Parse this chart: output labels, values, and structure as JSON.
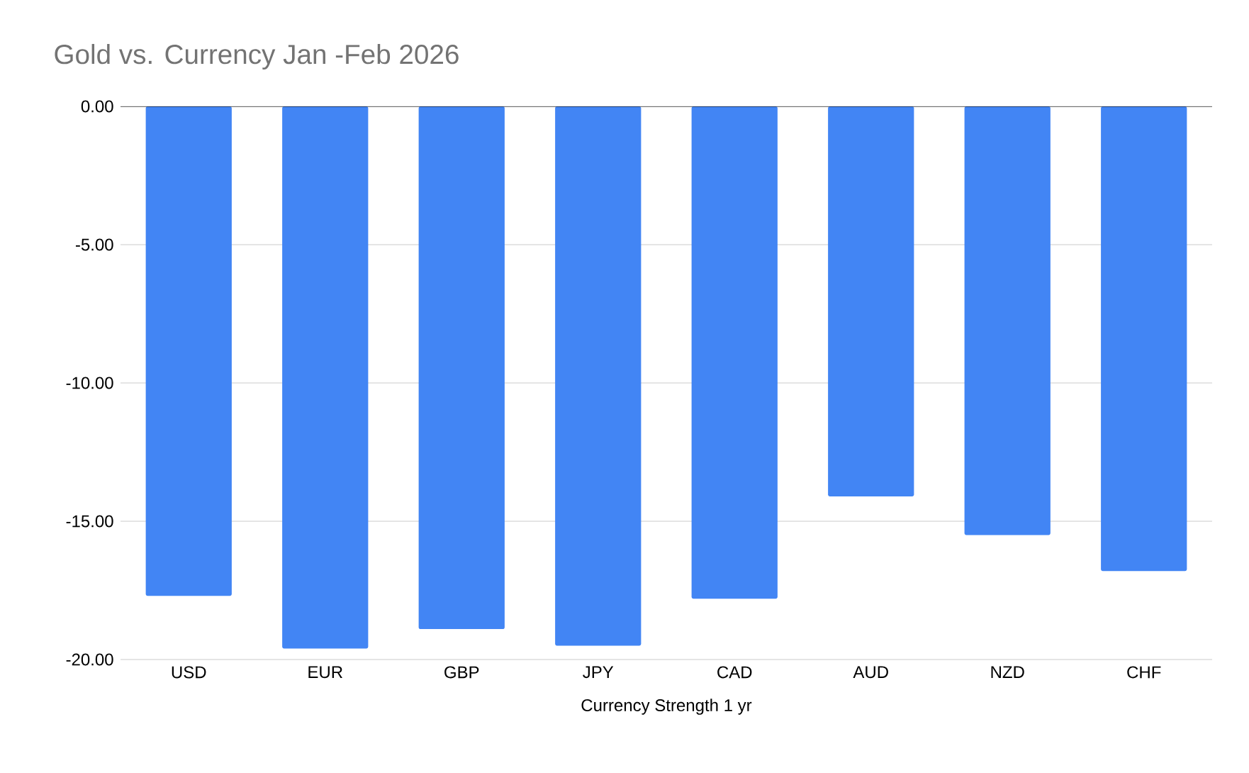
{
  "chart_data": {
    "type": "bar",
    "title": "Gold vs. Currency Jan -Feb 2026",
    "xlabel": "Currency Strength 1 yr",
    "categories": [
      "USD",
      "EUR",
      "GBP",
      "JPY",
      "CAD",
      "AUD",
      "NZD",
      "CHF"
    ],
    "values": [
      -17.7,
      -19.6,
      -18.9,
      -19.5,
      -17.8,
      -14.1,
      -15.5,
      -16.8
    ],
    "color": "#4285f4",
    "ylim": [
      -20,
      0
    ],
    "yticks": [
      {
        "value": -20,
        "label": "-20.00"
      },
      {
        "value": -15,
        "label": "-15.00"
      },
      {
        "value": -10,
        "label": "-10.00"
      },
      {
        "value": -5,
        "label": "-5.00"
      },
      {
        "value": 0,
        "label": "0.00"
      }
    ],
    "grid": "y"
  }
}
